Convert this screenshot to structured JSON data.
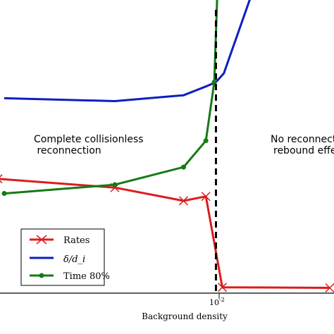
{
  "chart_data": {
    "type": "line",
    "xlabel": "Background density",
    "ylabel": "",
    "x_scale": "log",
    "x_tick_labels": [
      "10^-2"
    ],
    "grid": false,
    "legend_position": "lower-left",
    "threshold_line": {
      "x": 0.0098,
      "style": "dashed",
      "color": "#000000"
    },
    "annotations": [
      {
        "lines": [
          "Complete collisionless",
          " reconnection"
        ],
        "region": "left"
      },
      {
        "lines": [
          "No reconnection",
          "rebound effect"
        ],
        "region": "right"
      }
    ],
    "series": [
      {
        "name": "Rates",
        "color": "#dd1c1c",
        "marker": "x",
        "x": [
          0.0025,
          0.0052,
          0.008,
          0.0092,
          0.0102,
          0.02
        ],
        "y": [
          0.39,
          0.36,
          0.315,
          0.33,
          0.02,
          0.018
        ]
      },
      {
        "name": "δ/d_i",
        "color": "#0a1fc0",
        "marker": "none",
        "x": [
          0.0026,
          0.0052,
          0.008,
          0.0092,
          0.0098,
          0.0103,
          0.0125
        ],
        "y": [
          0.665,
          0.655,
          0.675,
          0.705,
          0.72,
          0.75,
          1.05
        ]
      },
      {
        "name": "Time 80%",
        "color": "#157a15",
        "marker": "o",
        "x": [
          0.0026,
          0.0052,
          0.008,
          0.0092,
          0.0097,
          0.0099
        ],
        "y": [
          0.34,
          0.37,
          0.43,
          0.52,
          0.72,
          1.05
        ]
      }
    ],
    "ylim": [
      0,
      1
    ],
    "xlim": [
      0.0026,
      0.02
    ]
  }
}
